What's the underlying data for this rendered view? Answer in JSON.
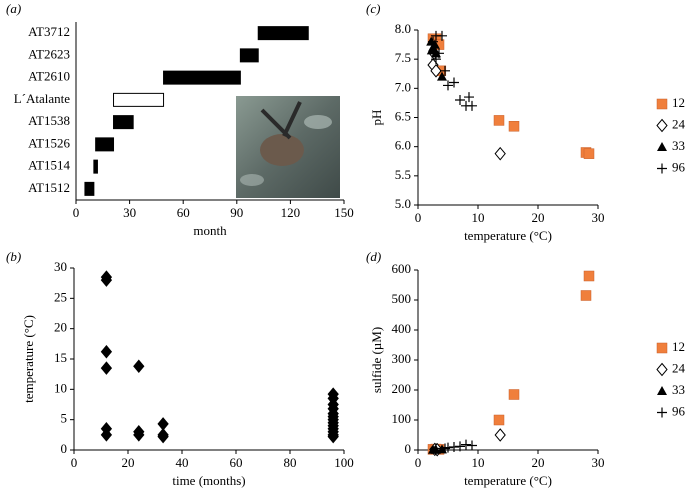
{
  "chart_data": [
    {
      "type": "gantt",
      "panel": "(a)",
      "xlabel": "month",
      "categories": [
        "AT3712",
        "AT2623",
        "AT2610",
        "L´Atalante",
        "AT1538",
        "AT1526",
        "AT1514",
        "AT1512"
      ],
      "start": [
        102,
        92,
        49,
        21,
        21,
        11,
        10,
        5
      ],
      "end": [
        130,
        102,
        92,
        49,
        32,
        21,
        12,
        10
      ],
      "colors": [
        "#000000",
        "#000000",
        "#000000",
        "#ffffff",
        "#000000",
        "#000000",
        "#000000",
        "#000000"
      ],
      "xlim": [
        0,
        150
      ],
      "xticks": [
        0,
        30,
        60,
        90,
        120,
        150
      ]
    },
    {
      "type": "scatter",
      "panel": "(b)",
      "xlabel": "time (months)",
      "ylabel": "temperature (°C)",
      "color": "#000000",
      "marker": "diamond",
      "x": [
        12,
        12,
        12,
        12,
        12,
        12,
        24,
        24,
        24,
        33,
        33,
        33,
        96,
        96,
        96,
        96,
        96,
        96,
        96,
        96,
        96,
        96,
        96,
        96,
        96
      ],
      "values": [
        28.5,
        28,
        16.2,
        13.5,
        3.5,
        2.5,
        13.8,
        3,
        2.5,
        4.3,
        2.5,
        2.2,
        9.2,
        8.5,
        7.5,
        6.8,
        6,
        5.5,
        5,
        4.5,
        4,
        3.5,
        3,
        2.5,
        2.2
      ],
      "xlim": [
        0,
        100
      ],
      "xticks": [
        0,
        20,
        40,
        60,
        80,
        100
      ],
      "ylim": [
        0,
        30
      ],
      "yticks": [
        0,
        5,
        10,
        15,
        20,
        25,
        30
      ]
    },
    {
      "type": "scatter",
      "panel": "(c)",
      "xlabel": "temperature (°C)",
      "ylabel": "pH",
      "legend": "right",
      "xlim": [
        0,
        30
      ],
      "xticks": [
        0,
        10,
        20,
        30
      ],
      "ylim": [
        5,
        8
      ],
      "yticks": [
        {
          "value": 5,
          "label": "5.0"
        },
        5.5,
        {
          "value": 6,
          "label": "6.0"
        },
        6.5,
        {
          "value": 7,
          "label": "7.0"
        },
        7.5,
        {
          "value": 8,
          "label": "8.0"
        }
      ],
      "series": [
        {
          "name": "12",
          "color": "#f07f3c",
          "marker": "square",
          "x": [
            2.5,
            3,
            3.5,
            3.8,
            13.5,
            16,
            28,
            28.5
          ],
          "values": [
            7.85,
            7.85,
            7.75,
            7.3,
            6.45,
            6.35,
            5.9,
            5.88
          ]
        },
        {
          "name": "24",
          "color": "#000000",
          "marker": "diamond-open",
          "x": [
            2.5,
            3,
            2.7,
            13.7
          ],
          "values": [
            7.4,
            7.3,
            7.6,
            5.88
          ]
        },
        {
          "name": "33",
          "color": "#000000",
          "marker": "triangle",
          "x": [
            2.2,
            2.5,
            3,
            2.8,
            4,
            2.3
          ],
          "values": [
            7.8,
            7.7,
            7.6,
            7.75,
            7.2,
            7.65
          ]
        },
        {
          "name": "96",
          "color": "#000000",
          "marker": "plus",
          "x": [
            3,
            4,
            3.5,
            4.5,
            5,
            6,
            7,
            8,
            8.5,
            9,
            3,
            2.5
          ],
          "values": [
            7.9,
            7.9,
            7.6,
            7.3,
            7.05,
            7.1,
            6.8,
            6.7,
            6.85,
            6.7,
            7.5,
            7.8
          ]
        }
      ]
    },
    {
      "type": "scatter",
      "panel": "(d)",
      "xlabel": "temperature (°C)",
      "ylabel": "sulfide (µM)",
      "legend": "right",
      "xlim": [
        0,
        30
      ],
      "xticks": [
        0,
        10,
        20,
        30
      ],
      "ylim": [
        0,
        600
      ],
      "yticks": [
        0,
        100,
        200,
        300,
        400,
        500,
        600
      ],
      "series": [
        {
          "name": "12",
          "color": "#f07f3c",
          "marker": "square",
          "x": [
            2.5,
            3,
            3.5,
            13.5,
            16,
            28,
            28.5
          ],
          "values": [
            2,
            3,
            2,
            100,
            185,
            515,
            580
          ]
        },
        {
          "name": "24",
          "color": "#000000",
          "marker": "diamond-open",
          "x": [
            2.8,
            3.2,
            13.7
          ],
          "values": [
            2,
            1,
            50
          ]
        },
        {
          "name": "33",
          "color": "#000000",
          "marker": "triangle",
          "x": [
            2.5,
            3,
            4
          ],
          "values": [
            1,
            1,
            2
          ]
        },
        {
          "name": "96",
          "color": "#000000",
          "marker": "plus",
          "x": [
            3,
            4.5,
            5,
            6,
            7,
            8,
            9
          ],
          "values": [
            5,
            5,
            8,
            10,
            12,
            18,
            15
          ]
        }
      ]
    }
  ]
}
